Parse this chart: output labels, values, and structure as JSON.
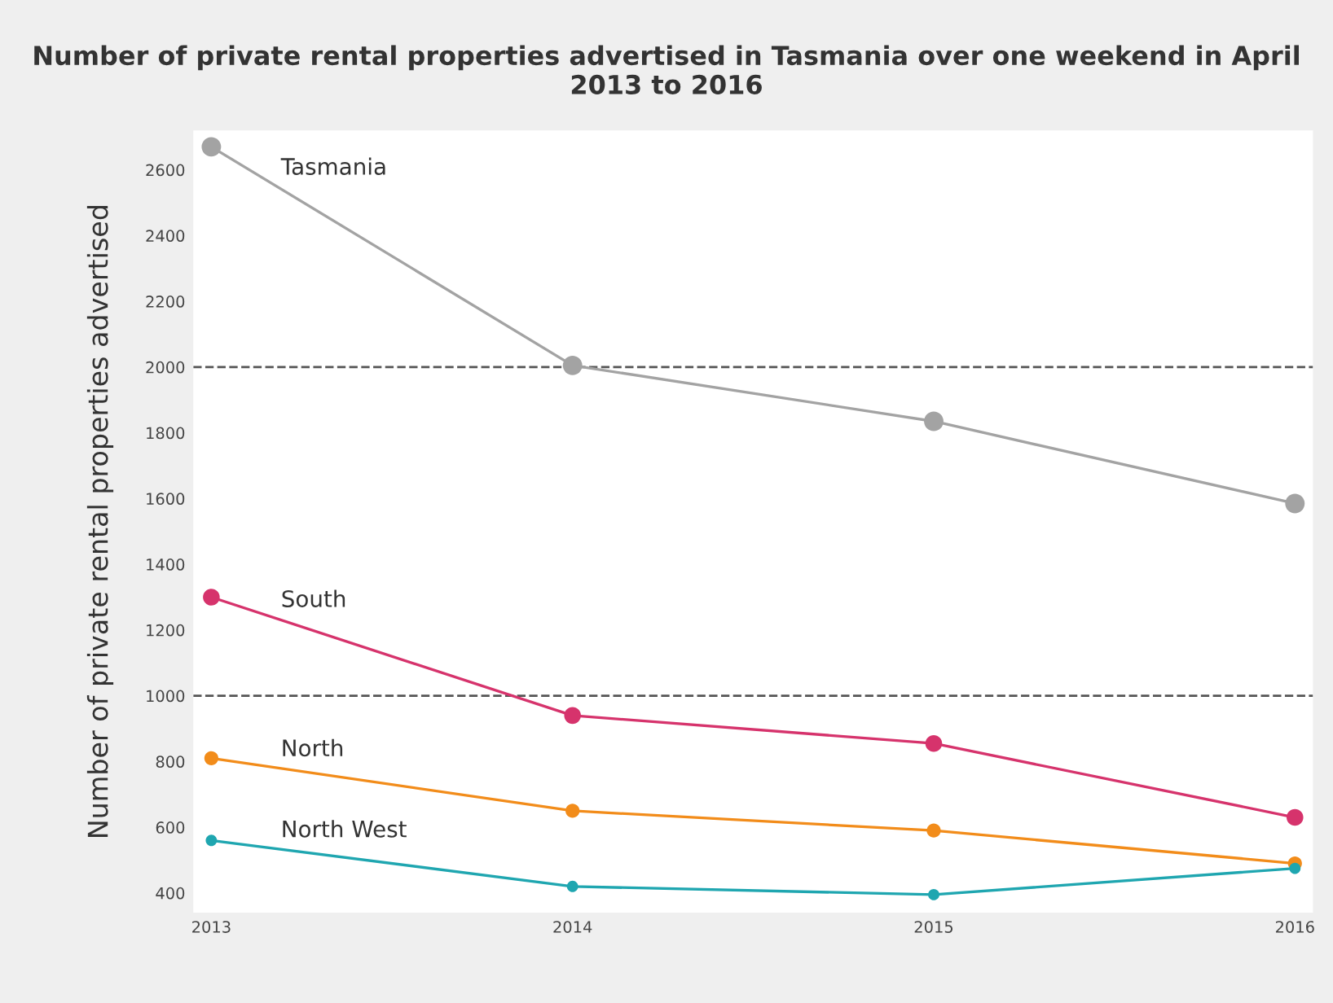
{
  "chart_data": {
    "type": "line",
    "title": "Number of private rental properties advertised in Tasmania over one weekend in April 2013 to 2016",
    "ylabel": "Number of private rental properties advertised",
    "x": [
      2013,
      2014,
      2015,
      2016
    ],
    "series": [
      {
        "name": "Tasmania",
        "color": "#a3a3a3",
        "values": [
          2670,
          2005,
          1835,
          1585
        ]
      },
      {
        "name": "South",
        "color": "#d6336c",
        "values": [
          1300,
          940,
          855,
          630
        ]
      },
      {
        "name": "North",
        "color": "#f28c1a",
        "values": [
          810,
          650,
          590,
          490
        ]
      },
      {
        "name": "North West",
        "color": "#1fa6b0",
        "values": [
          560,
          420,
          395,
          475
        ]
      }
    ],
    "xlim": [
      2012.95,
      2016.05
    ],
    "xticks": [
      2013,
      2014,
      2015,
      2016
    ],
    "ylim": [
      340,
      2720
    ],
    "yticks": [
      400,
      600,
      800,
      1000,
      1200,
      1400,
      1600,
      1800,
      2000,
      2200,
      2400,
      2600
    ],
    "ref_lines": [
      {
        "axis": "y",
        "value": 2000,
        "color": "#555555",
        "line_style": "dashed"
      },
      {
        "axis": "y",
        "value": 1000,
        "color": "#555555",
        "line_style": "dashed"
      }
    ],
    "marker": "circle",
    "line_style": "solid",
    "grid": false,
    "legend": false
  }
}
